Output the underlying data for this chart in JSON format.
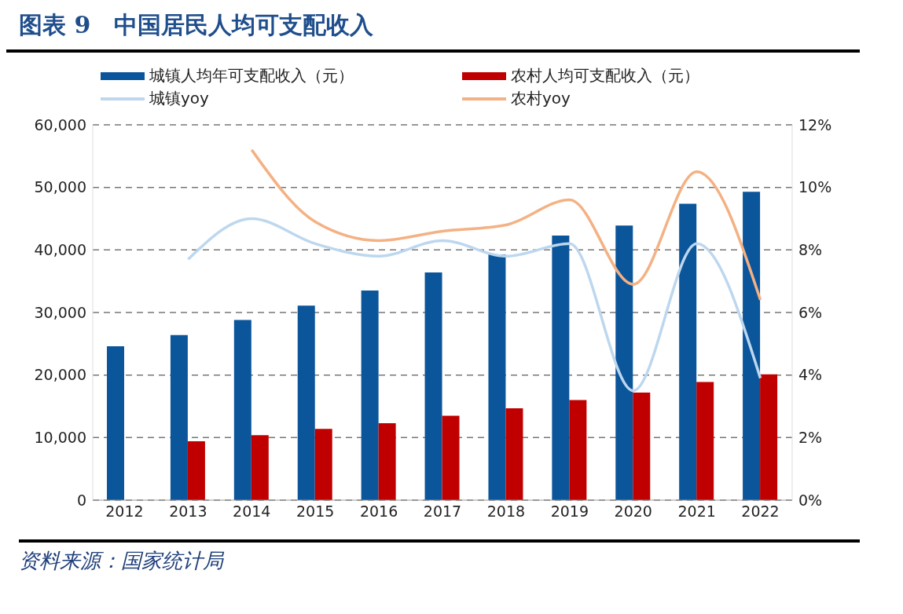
{
  "chart_data": {
    "type": "bar",
    "title": "图表 9　中国居民人均可支配收入",
    "categories": [
      "2012",
      "2013",
      "2014",
      "2015",
      "2016",
      "2017",
      "2018",
      "2019",
      "2020",
      "2021",
      "2022"
    ],
    "series": [
      {
        "name": "城镇人均年可支配收入（元）",
        "color": "#0b559b",
        "values": [
          24600,
          26400,
          28800,
          31100,
          33500,
          36400,
          39300,
          42300,
          43900,
          47400,
          49300
        ]
      },
      {
        "name": "农村人均可支配收入（元）",
        "color": "#c00000",
        "values": [
          null,
          9400,
          10400,
          11400,
          12300,
          13500,
          14700,
          16000,
          17200,
          18900,
          20100
        ]
      },
      {
        "name": "城镇yoy",
        "type": "line",
        "axis": "y2",
        "color": "#bdd7ee",
        "values": [
          null,
          7.7,
          9.0,
          8.2,
          7.8,
          8.3,
          7.8,
          8.2,
          3.5,
          8.2,
          3.9
        ]
      },
      {
        "name": "农村yoy",
        "type": "line",
        "axis": "y2",
        "color": "#f4b183",
        "values": [
          null,
          null,
          11.2,
          8.9,
          8.3,
          8.6,
          8.8,
          9.6,
          6.9,
          10.5,
          6.4
        ]
      }
    ],
    "ylim": [
      0,
      60000
    ],
    "yticks": [
      0,
      {
        "value": 10000,
        "label": "10,000"
      },
      {
        "value": 20000,
        "label": "20,000"
      },
      {
        "value": 30000,
        "label": "30,000"
      },
      {
        "value": 40000,
        "label": "40,000"
      },
      {
        "value": 50000,
        "label": "50,000"
      },
      {
        "value": 60000,
        "label": "60,000"
      }
    ],
    "y2lim": [
      0,
      12
    ],
    "y2ticks": [
      {
        "value": 0,
        "label": "0%"
      },
      {
        "value": 2,
        "label": "2%"
      },
      {
        "value": 4,
        "label": "4%"
      },
      {
        "value": 6,
        "label": "6%"
      },
      {
        "value": 8,
        "label": "8%"
      },
      {
        "value": 10,
        "label": "10%"
      },
      {
        "value": 12,
        "label": "12%"
      }
    ],
    "grid": "y",
    "legend": "top",
    "marker": "none",
    "line_style": "solid",
    "annotations": [
      "资料来源：国家统计局"
    ]
  }
}
